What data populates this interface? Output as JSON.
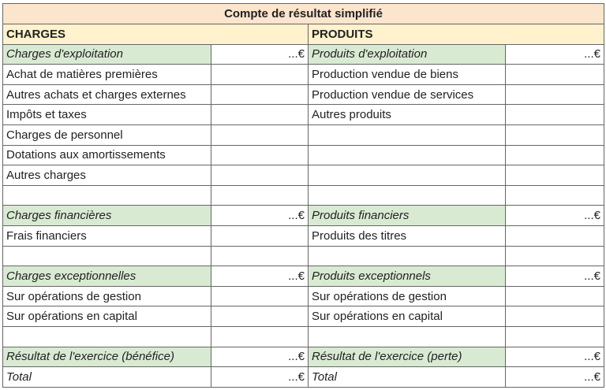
{
  "title": "Compte de résultat simplifié",
  "headers": {
    "left": "CHARGES",
    "right": "PRODUITS"
  },
  "rows": [
    {
      "type": "sec",
      "l": "Charges d'exploitation",
      "lv": "...€",
      "r": "Produits d'exploitation",
      "rv": "...€"
    },
    {
      "type": "item",
      "l": "Achat de matières premières",
      "lv": "",
      "r": "Production vendue de biens",
      "rv": ""
    },
    {
      "type": "item",
      "l": "Autres achats et charges externes",
      "lv": "",
      "r": "Production vendue de services",
      "rv": ""
    },
    {
      "type": "item",
      "l": "Impôts et taxes",
      "lv": "",
      "r": "Autres produits",
      "rv": ""
    },
    {
      "type": "item",
      "l": "Charges de personnel",
      "lv": "",
      "r": "",
      "rv": ""
    },
    {
      "type": "item",
      "l": "Dotations aux amortissements",
      "lv": "",
      "r": "",
      "rv": ""
    },
    {
      "type": "item",
      "l": "Autres charges",
      "lv": "",
      "r": "",
      "rv": ""
    },
    {
      "type": "item",
      "l": "",
      "lv": "",
      "r": "",
      "rv": ""
    },
    {
      "type": "sec",
      "l": "Charges financières",
      "lv": "...€",
      "r": "Produits financiers",
      "rv": "...€"
    },
    {
      "type": "item",
      "l": "Frais financiers",
      "lv": "",
      "r": "Produits des titres",
      "rv": ""
    },
    {
      "type": "item",
      "l": "",
      "lv": "",
      "r": "",
      "rv": ""
    },
    {
      "type": "sec",
      "l": "Charges exceptionnelles",
      "lv": "...€",
      "r": "Produits exceptionnels",
      "rv": "...€"
    },
    {
      "type": "item",
      "l": "Sur opérations de gestion",
      "lv": "",
      "r": "Sur opérations de gestion",
      "rv": ""
    },
    {
      "type": "item",
      "l": "Sur opérations en capital",
      "lv": "",
      "r": "Sur opérations en capital",
      "rv": ""
    },
    {
      "type": "item",
      "l": "",
      "lv": "",
      "r": "",
      "rv": ""
    },
    {
      "type": "sec",
      "l": "Résultat de l'exercice (bénéfice)",
      "lv": "...€",
      "r": "Résultat de l'exercice (perte)",
      "rv": "...€"
    },
    {
      "type": "tot",
      "l": "Total",
      "lv": "...€",
      "r": "Total",
      "rv": "...€"
    }
  ]
}
